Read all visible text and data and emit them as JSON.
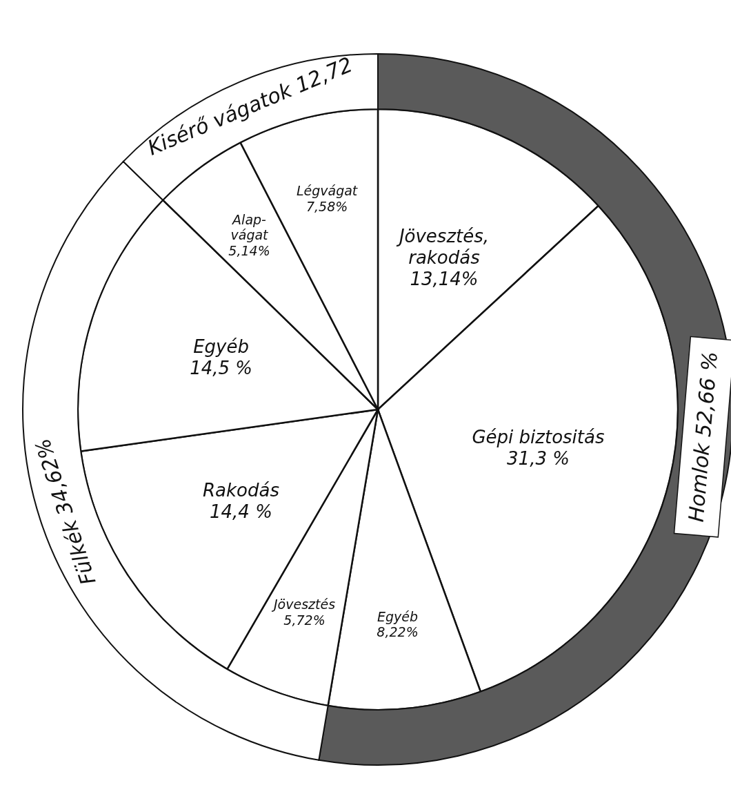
{
  "chart_data": [
    {
      "type": "pie",
      "categories": [
        "Jövesztés, rakodás",
        "Gépi biztositás",
        "Egyéb",
        "Jövesztés",
        "Rakodás",
        "Egyéb",
        "Alap-vágat",
        "Légvágat"
      ],
      "values": [
        13.14,
        31.3,
        8.22,
        5.72,
        14.4,
        14.5,
        5.14,
        7.58
      ],
      "colors": [
        "#ffffff",
        "#ffffff",
        "#ffffff",
        "#ffffff",
        "#ffffff",
        "#ffffff",
        "#ffffff",
        "#ffffff"
      ],
      "value_labels": [
        "13,14%",
        "31,3 %",
        "8,22%",
        "5,72%",
        "14,4 %",
        "14,5 %",
        "5,14%",
        "7,58%"
      ]
    },
    {
      "type": "donut",
      "categories": [
        "Homlok",
        "Fülkék",
        "Kisérő vágatok"
      ],
      "values": [
        52.66,
        34.62,
        12.72
      ],
      "colors": [
        "#5a5a5a",
        "#ffffff",
        "#ffffff"
      ],
      "value_labels": [
        "52,66 %",
        "34,62%",
        "12,72"
      ]
    }
  ]
}
